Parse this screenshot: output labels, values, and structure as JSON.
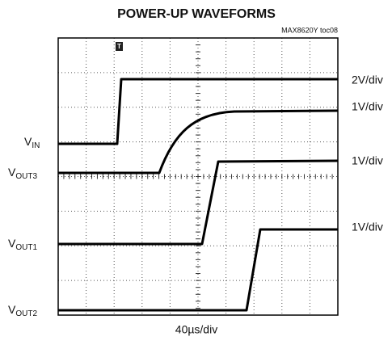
{
  "title": "POWER-UP WAVEFORMS",
  "note": "MAX8620Y toc08",
  "trigger": "T",
  "time_scale": "40µs/div",
  "traces": [
    {
      "base": "V",
      "sub": "IN",
      "scale": "2V/div"
    },
    {
      "base": "V",
      "sub": "OUT3",
      "scale": "1V/div"
    },
    {
      "base": "V",
      "sub": "OUT1",
      "scale": "1V/div"
    },
    {
      "base": "V",
      "sub": "OUT2",
      "scale": "1V/div"
    }
  ]
}
